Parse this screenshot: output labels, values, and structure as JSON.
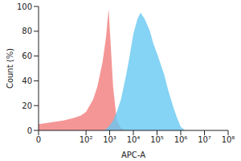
{
  "chart_data": {
    "type": "area",
    "x_label": "APC-A",
    "y_label": "Count (%)",
    "log": "x",
    "grid": false,
    "x": [
      0,
      10,
      30,
      60,
      100,
      200,
      300,
      500,
      700,
      900,
      1100,
      1400,
      2000,
      3000,
      5000,
      7000,
      10000,
      15000,
      20000,
      30000,
      50000,
      70000,
      100000,
      200000,
      300000,
      500000,
      700000,
      1000000,
      1500000,
      2000000
    ],
    "series": [
      {
        "color": "#f27c7c",
        "values": [
          5,
          8,
          10,
          12,
          15,
          25,
          35,
          55,
          75,
          98,
          70,
          35,
          8,
          2,
          0,
          0,
          0,
          0,
          0,
          0,
          0,
          0,
          0,
          0,
          0,
          0,
          0,
          0,
          0,
          0
        ]
      },
      {
        "color": "#66c8f2",
        "values": [
          0,
          0,
          0,
          0,
          0,
          0,
          0,
          0,
          1,
          3,
          5,
          8,
          15,
          25,
          45,
          60,
          78,
          90,
          95,
          90,
          80,
          70,
          62,
          45,
          32,
          18,
          10,
          3,
          0,
          0
        ]
      }
    ],
    "xlim": [
      0,
      100000000
    ],
    "xticks": [
      0,
      {
        "value": 100,
        "label": "10²"
      },
      {
        "value": 1000,
        "label": "10³"
      },
      {
        "value": 10000,
        "label": "10⁴"
      },
      {
        "value": 100000,
        "label": "10⁵"
      },
      {
        "value": 1000000,
        "label": "10⁶"
      },
      {
        "value": 10000000,
        "label": "10⁷"
      },
      {
        "value": 100000000,
        "label": "10⁸"
      }
    ],
    "ylim": [
      0,
      100
    ],
    "yticks": [
      0,
      20,
      40,
      60,
      80,
      100
    ]
  }
}
